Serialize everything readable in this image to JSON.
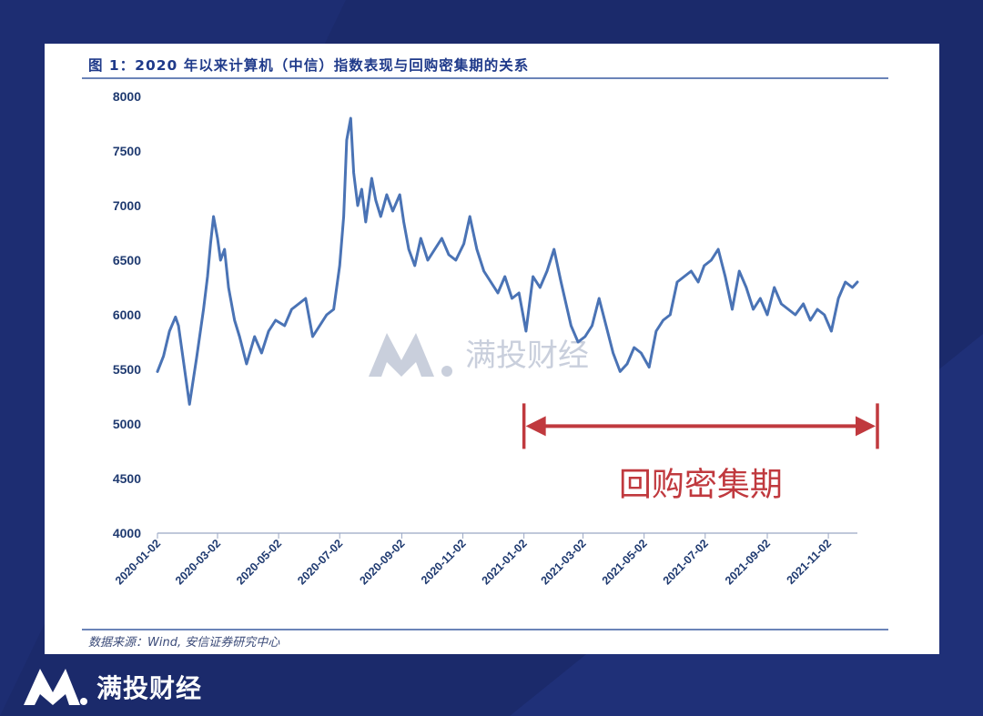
{
  "figure": {
    "title": "图 1：2020 年以来计算机（中信）指数表现与回购密集期的关系",
    "source": "数据来源：Wind, 安信证券研究中心"
  },
  "watermark": {
    "text": "满投财经",
    "icon": "mm-logo-icon"
  },
  "brand": {
    "name": "满投财经",
    "icon": "mm-logo-icon"
  },
  "colors": {
    "line": "#4a73b5",
    "annotation": "#c0393e",
    "axis": "#1f3a70"
  },
  "chart_data": {
    "type": "line",
    "title": "图 1：2020 年以来计算机（中信）指数表现与回购密集期的关系",
    "xlabel": "",
    "ylabel": "",
    "ylim": [
      4000,
      8000
    ],
    "yticks": [
      4000,
      4500,
      5000,
      5500,
      6000,
      6500,
      7000,
      7500,
      8000
    ],
    "xtick_labels": [
      "2020-01-02",
      "2020-03-02",
      "2020-05-02",
      "2020-07-02",
      "2020-09-02",
      "2020-11-02",
      "2021-01-02",
      "2021-03-02",
      "2021-05-02",
      "2021-07-02",
      "2021-09-02",
      "2021-11-02"
    ],
    "xlim": [
      "2020-01-02",
      "2021-12-01"
    ],
    "grid": false,
    "legend": "none",
    "series": [
      {
        "points": [
          [
            "2020-01-02",
            5480
          ],
          [
            "2020-01-08",
            5620
          ],
          [
            "2020-01-14",
            5850
          ],
          [
            "2020-01-20",
            5980
          ],
          [
            "2020-01-23",
            5900
          ],
          [
            "2020-02-03",
            5180
          ],
          [
            "2020-02-10",
            5600
          ],
          [
            "2020-02-17",
            6050
          ],
          [
            "2020-02-21",
            6350
          ],
          [
            "2020-02-24",
            6650
          ],
          [
            "2020-02-27",
            6900
          ],
          [
            "2020-03-02",
            6700
          ],
          [
            "2020-03-05",
            6500
          ],
          [
            "2020-03-09",
            6600
          ],
          [
            "2020-03-13",
            6250
          ],
          [
            "2020-03-19",
            5950
          ],
          [
            "2020-03-24",
            5800
          ],
          [
            "2020-03-31",
            5550
          ],
          [
            "2020-04-08",
            5800
          ],
          [
            "2020-04-15",
            5650
          ],
          [
            "2020-04-22",
            5850
          ],
          [
            "2020-04-29",
            5950
          ],
          [
            "2020-05-08",
            5900
          ],
          [
            "2020-05-15",
            6050
          ],
          [
            "2020-05-22",
            6100
          ],
          [
            "2020-05-29",
            6150
          ],
          [
            "2020-06-05",
            5800
          ],
          [
            "2020-06-12",
            5900
          ],
          [
            "2020-06-19",
            6000
          ],
          [
            "2020-06-26",
            6050
          ],
          [
            "2020-07-02",
            6450
          ],
          [
            "2020-07-06",
            6900
          ],
          [
            "2020-07-09",
            7600
          ],
          [
            "2020-07-13",
            7800
          ],
          [
            "2020-07-16",
            7300
          ],
          [
            "2020-07-20",
            7000
          ],
          [
            "2020-07-24",
            7150
          ],
          [
            "2020-07-28",
            6850
          ],
          [
            "2020-08-03",
            7250
          ],
          [
            "2020-08-07",
            7050
          ],
          [
            "2020-08-12",
            6900
          ],
          [
            "2020-08-18",
            7100
          ],
          [
            "2020-08-24",
            6950
          ],
          [
            "2020-08-31",
            7100
          ],
          [
            "2020-09-04",
            6850
          ],
          [
            "2020-09-09",
            6600
          ],
          [
            "2020-09-15",
            6450
          ],
          [
            "2020-09-21",
            6700
          ],
          [
            "2020-09-28",
            6500
          ],
          [
            "2020-10-12",
            6700
          ],
          [
            "2020-10-19",
            6550
          ],
          [
            "2020-10-26",
            6500
          ],
          [
            "2020-11-03",
            6650
          ],
          [
            "2020-11-09",
            6900
          ],
          [
            "2020-11-16",
            6600
          ],
          [
            "2020-11-23",
            6400
          ],
          [
            "2020-11-30",
            6300
          ],
          [
            "2020-12-07",
            6200
          ],
          [
            "2020-12-14",
            6350
          ],
          [
            "2020-12-21",
            6150
          ],
          [
            "2020-12-28",
            6200
          ],
          [
            "2021-01-04",
            5850
          ],
          [
            "2021-01-11",
            6350
          ],
          [
            "2021-01-18",
            6250
          ],
          [
            "2021-01-25",
            6400
          ],
          [
            "2021-02-01",
            6600
          ],
          [
            "2021-02-08",
            6300
          ],
          [
            "2021-02-18",
            5900
          ],
          [
            "2021-02-25",
            5750
          ],
          [
            "2021-03-04",
            5800
          ],
          [
            "2021-03-11",
            5900
          ],
          [
            "2021-03-18",
            6150
          ],
          [
            "2021-03-25",
            5900
          ],
          [
            "2021-04-01",
            5650
          ],
          [
            "2021-04-08",
            5480
          ],
          [
            "2021-04-15",
            5550
          ],
          [
            "2021-04-22",
            5700
          ],
          [
            "2021-04-29",
            5650
          ],
          [
            "2021-05-07",
            5520
          ],
          [
            "2021-05-14",
            5850
          ],
          [
            "2021-05-21",
            5950
          ],
          [
            "2021-05-28",
            6000
          ],
          [
            "2021-06-04",
            6300
          ],
          [
            "2021-06-11",
            6350
          ],
          [
            "2021-06-18",
            6400
          ],
          [
            "2021-06-25",
            6300
          ],
          [
            "2021-07-01",
            6450
          ],
          [
            "2021-07-08",
            6500
          ],
          [
            "2021-07-15",
            6600
          ],
          [
            "2021-07-22",
            6350
          ],
          [
            "2021-07-29",
            6050
          ],
          [
            "2021-08-05",
            6400
          ],
          [
            "2021-08-12",
            6250
          ],
          [
            "2021-08-19",
            6050
          ],
          [
            "2021-08-26",
            6150
          ],
          [
            "2021-09-02",
            6000
          ],
          [
            "2021-09-09",
            6250
          ],
          [
            "2021-09-16",
            6100
          ],
          [
            "2021-09-23",
            6050
          ],
          [
            "2021-09-30",
            6000
          ],
          [
            "2021-10-08",
            6100
          ],
          [
            "2021-10-15",
            5950
          ],
          [
            "2021-10-22",
            6050
          ],
          [
            "2021-10-29",
            6000
          ],
          [
            "2021-11-05",
            5850
          ],
          [
            "2021-11-12",
            6150
          ],
          [
            "2021-11-19",
            6300
          ],
          [
            "2021-11-26",
            6250
          ],
          [
            "2021-12-01",
            6300
          ]
        ]
      }
    ],
    "annotations": [
      {
        "type": "span-arrow",
        "x_start": "2021-01-02",
        "x_end": "2021-12-21",
        "y": 4980,
        "label": "回购密集期"
      }
    ]
  }
}
